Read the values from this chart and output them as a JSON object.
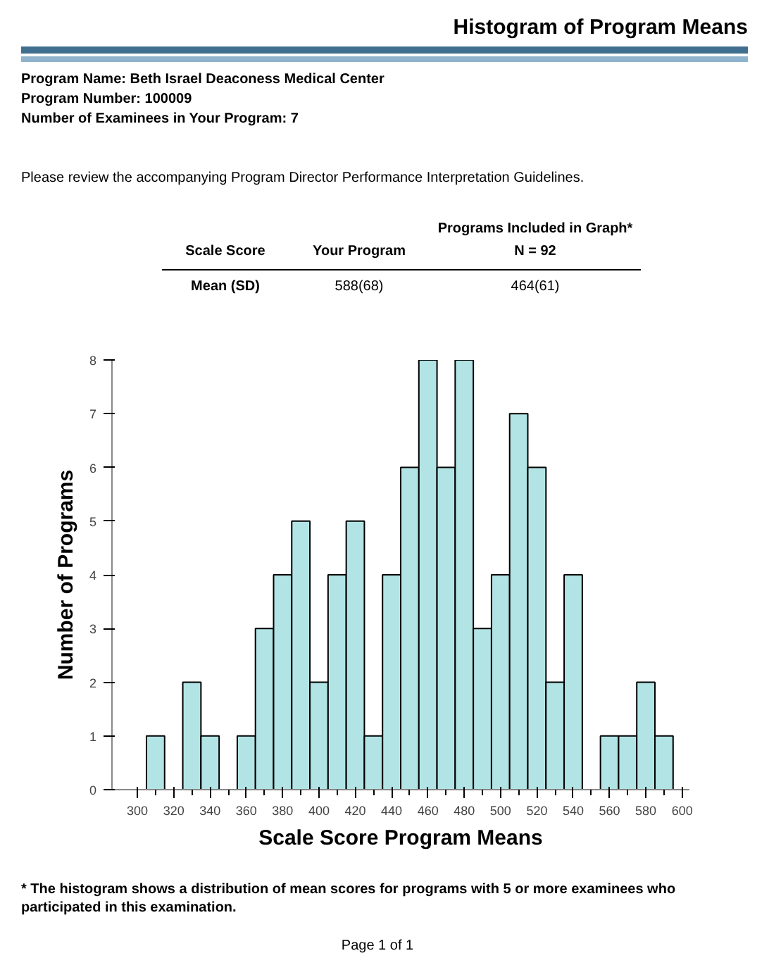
{
  "chart_data": {
    "type": "histogram",
    "title": "Histogram of Program Means",
    "xlabel": "Scale Score Program Means",
    "ylabel": "Number of Programs",
    "annotations": [
      "Program Name: Beth Israel Deaconess Medical Center",
      "Program Number: 100009",
      "Number of Examinees in Your Program: 7",
      "Please review the accompanying Program Director Performance Interpretation Guidelines.",
      "Scale Score",
      "Your Program",
      "Programs Included in Graph*",
      "N = 92",
      "Mean (SD)",
      "588(68)",
      "464(61)",
      "* The histogram shows a distribution of mean scores for programs with 5 or more examinees who participated in this examination.",
      "Page 1 of 1"
    ],
    "bins": [
      305,
      315,
      325,
      335,
      345,
      355,
      365,
      375,
      385,
      395,
      405,
      415,
      425,
      435,
      445,
      455,
      465,
      475,
      485,
      495,
      505,
      515,
      525,
      535,
      545,
      555,
      565,
      575,
      585,
      595
    ],
    "values": [
      1,
      0,
      2,
      1,
      0,
      1,
      3,
      4,
      5,
      2,
      4,
      5,
      1,
      4,
      6,
      8,
      6,
      8,
      3,
      4,
      7,
      6,
      2,
      4,
      0,
      1,
      1,
      2,
      1
    ],
    "color": "#b3e4e5",
    "xlim": [
      286,
      604
    ],
    "ylim": [
      0,
      8
    ],
    "xticks": [
      300,
      320,
      340,
      360,
      380,
      400,
      420,
      440,
      460,
      480,
      500,
      520,
      540,
      560,
      580,
      600
    ],
    "yticks": [
      0,
      1,
      2,
      3,
      4,
      5,
      6,
      7,
      8
    ],
    "grid": false
  }
}
